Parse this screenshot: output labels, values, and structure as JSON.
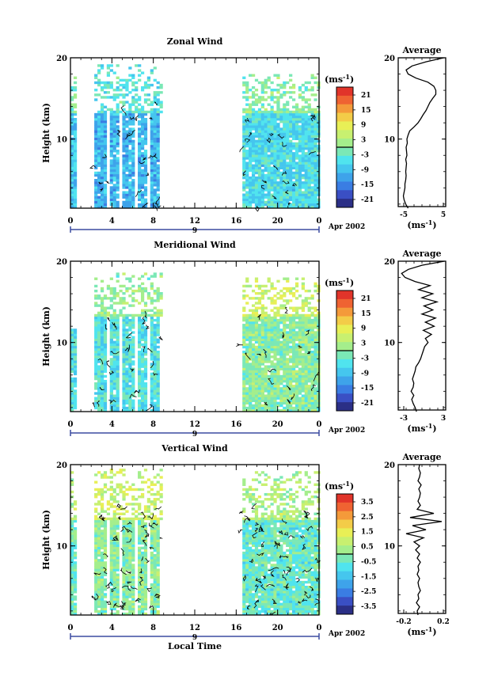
{
  "palette": {
    "colors": [
      "#2b2f86",
      "#3a4fc4",
      "#3a7de3",
      "#3ea3ea",
      "#45c6ee",
      "#50e4ee",
      "#7be8b6",
      "#a4ee8c",
      "#c8f070",
      "#e8ef56",
      "#f3cc48",
      "#f49a3a",
      "#ef6332",
      "#e1342a"
    ],
    "accent": "#3c4ca0"
  },
  "panels": [
    {
      "title": "Zonal Wind",
      "ylabel": "Height (km)",
      "yticks": [
        "20",
        "10"
      ],
      "xticks": [
        "0",
        "4",
        "8",
        "12",
        "16",
        "20",
        "0"
      ],
      "date_label": "Apr 2002",
      "day_label": "9",
      "colorbar": {
        "unit": "(ms",
        "unit_sup": "-1",
        "unit_end": ")",
        "ticks": [
          "21",
          "15",
          "9",
          "3",
          "-3",
          "-9",
          "-15",
          "-21"
        ],
        "zero_line": 0.5
      },
      "avg": {
        "title": "Average",
        "yticks": [
          "20",
          "10"
        ],
        "xticks": [
          "-5",
          "5"
        ],
        "xlabel": "(ms",
        "xlabel_sup": "-1",
        "xlabel_end": ")"
      }
    },
    {
      "title": "Meridional Wind",
      "ylabel": "Height (km)",
      "yticks": [
        "20",
        "10"
      ],
      "xticks": [
        "0",
        "4",
        "8",
        "12",
        "16",
        "20",
        "0"
      ],
      "date_label": "Apr 2002",
      "day_label": "9",
      "colorbar": {
        "unit": "(ms",
        "unit_sup": "-1",
        "unit_end": ")",
        "ticks": [
          "21",
          "15",
          "9",
          "3",
          "-3",
          "-9",
          "-15",
          "-21"
        ],
        "zero_line": 0.5
      },
      "avg": {
        "title": "Average",
        "yticks": [
          "20",
          "10"
        ],
        "xticks": [
          "-3",
          "3"
        ],
        "xlabel": "(ms",
        "xlabel_sup": "-1",
        "xlabel_end": ")"
      }
    },
    {
      "title": "Vertical Wind",
      "ylabel": "Height (km)",
      "yticks": [
        "20",
        "10"
      ],
      "xticks": [
        "0",
        "4",
        "8",
        "12",
        "16",
        "20",
        "0"
      ],
      "date_label": "Apr 2002",
      "day_label": "9",
      "xlabel": "Local Time",
      "colorbar": {
        "unit": "(ms",
        "unit_sup": "-1",
        "unit_end": ")",
        "ticks": [
          "3.5",
          "2.5",
          "1.5",
          "0.5",
          "-0.5",
          "-1.5",
          "-2.5",
          "-3.5"
        ],
        "zero_line": 0.5
      },
      "avg": {
        "title": "Average",
        "yticks": [
          "20",
          "10"
        ],
        "xticks": [
          "-0.2",
          "0.2"
        ],
        "xlabel": "(ms",
        "xlabel_sup": "-1",
        "xlabel_end": ")"
      }
    }
  ],
  "chart_data": [
    {
      "type": "heatmap",
      "title": "Zonal Wind",
      "xlabel": "",
      "ylabel": "Height (km)",
      "xlim": [
        0,
        24
      ],
      "ylim": [
        1.5,
        20
      ],
      "value_range": [
        -24,
        24
      ],
      "segments": [
        {
          "x": [
            0.0,
            0.6
          ],
          "z": [
            1.5,
            18.5
          ],
          "base": -8
        },
        {
          "x": [
            2.3,
            8.8
          ],
          "z": [
            1.5,
            19.0
          ],
          "base": -10
        },
        {
          "x": [
            16.6,
            24.0
          ],
          "z": [
            1.5,
            18.0
          ],
          "base": -6
        }
      ],
      "profile": {
        "x": [
          -6.5,
          5.5
        ],
        "z": [
          1.5,
          20
        ],
        "values": [
          -4,
          -4.6,
          -5,
          -5.2,
          -5,
          -4.8,
          -4.8,
          -4.6,
          -4.5,
          -4.6,
          -4.5,
          -4.4,
          -4.6,
          -4.3,
          -4.4,
          -4.5,
          -4.2,
          -4.3,
          -4,
          -3.6,
          -2.5,
          -1.5,
          -0.8,
          -0.2,
          0.5,
          1,
          1.5,
          2.2,
          3,
          3,
          2.5,
          1,
          -2,
          -4,
          -4.5,
          -3,
          0.5,
          5
        ]
      }
    },
    {
      "type": "heatmap",
      "title": "Meridional Wind",
      "xlabel": "",
      "ylabel": "Height (km)",
      "xlim": [
        0,
        24
      ],
      "ylim": [
        1.5,
        20
      ],
      "value_range": [
        -24,
        24
      ],
      "segments": [
        {
          "x": [
            0.0,
            0.6
          ],
          "z": [
            1.5,
            11.5
          ],
          "base": -5
        },
        {
          "x": [
            2.3,
            8.8
          ],
          "z": [
            1.5,
            18.5
          ],
          "base": -5
        },
        {
          "x": [
            16.6,
            24.0
          ],
          "z": [
            1.5,
            18.0
          ],
          "base": 0
        }
      ],
      "profile": {
        "x": [
          -3.5,
          3.5
        ],
        "z": [
          1.5,
          20
        ],
        "values": [
          -0.8,
          -1.0,
          -1.3,
          -1.5,
          -1.2,
          -1.6,
          -1.3,
          -1.2,
          -1.4,
          -1.2,
          -1.0,
          -0.9,
          -0.5,
          -0.2,
          0,
          0.2,
          0.4,
          0.9,
          0.5,
          1.4,
          0.2,
          1.8,
          0.5,
          2,
          0,
          1.6,
          0.3,
          2.2,
          0,
          1.6,
          -0.5,
          1.2,
          -1,
          -2.5,
          -3,
          -2,
          0,
          3.3
        ]
      }
    },
    {
      "type": "heatmap",
      "title": "Vertical Wind",
      "xlabel": "Local Time",
      "ylabel": "Height (km)",
      "xlim": [
        0,
        24
      ],
      "ylim": [
        1.5,
        20
      ],
      "value_range": [
        -4,
        4
      ],
      "segments": [
        {
          "x": [
            0.0,
            0.6
          ],
          "z": [
            1.5,
            19.5
          ],
          "base": -0.4
        },
        {
          "x": [
            2.3,
            8.8
          ],
          "z": [
            1.5,
            19.5
          ],
          "base": 0
        },
        {
          "x": [
            16.6,
            24.0
          ],
          "z": [
            1.5,
            19.0
          ],
          "base": -0.5
        }
      ],
      "profile": {
        "x": [
          -0.3,
          0.3
        ],
        "z": [
          1.5,
          20
        ],
        "values": [
          -0.05,
          -0.06,
          -0.03,
          -0.07,
          -0.04,
          -0.05,
          -0.02,
          -0.04,
          -0.05,
          -0.03,
          -0.06,
          -0.04,
          -0.05,
          -0.02,
          -0.06,
          -0.03,
          -0.08,
          -0.03,
          -0.1,
          0.02,
          -0.2,
          0.05,
          -0.12,
          0.25,
          -0.15,
          0.15,
          -0.06,
          -0.02,
          -0.05,
          -0.03,
          -0.02,
          -0.04,
          -0.01,
          -0.05,
          -0.03,
          -0.02,
          -0.04,
          -0.03
        ]
      }
    }
  ]
}
